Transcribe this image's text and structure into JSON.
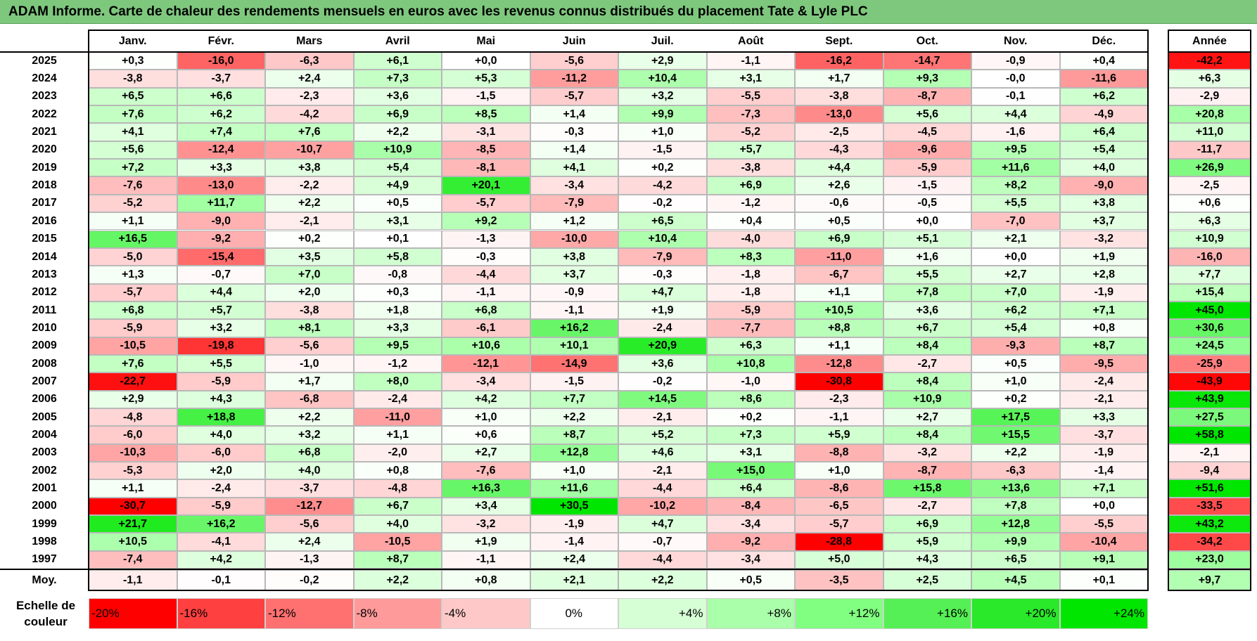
{
  "title": "ADAM Informe. Carte de chaleur des rendements mensuels en euros avec les revenus connus distribués du placement Tate & Lyle PLC",
  "chart_data": {
    "type": "heatmap",
    "title": "ADAM Informe. Carte de chaleur des rendements mensuels en euros avec les revenus connus distribués du placement Tate & Lyle PLC",
    "columns": [
      "Janv.",
      "Févr.",
      "Mars",
      "Avril",
      "Mai",
      "Juin",
      "Juil.",
      "Août",
      "Sept.",
      "Oct.",
      "Nov.",
      "Déc."
    ],
    "year_column": "Année",
    "rows": [
      {
        "year": "2025",
        "values": [
          "+0,3",
          "-16,0",
          "-6,3",
          "+6,1",
          "+0,0",
          "-5,6",
          "+2,9",
          "-1,1",
          "-16,2",
          "-14,7",
          "-0,9",
          "+0,4"
        ],
        "annual": "-42,2"
      },
      {
        "year": "2024",
        "values": [
          "-3,8",
          "-3,7",
          "+2,4",
          "+7,3",
          "+5,3",
          "-11,2",
          "+10,4",
          "+3,1",
          "+1,7",
          "+9,3",
          "-0,0",
          "-11,6"
        ],
        "annual": "+6,3"
      },
      {
        "year": "2023",
        "values": [
          "+6,5",
          "+6,6",
          "-2,3",
          "+3,6",
          "-1,5",
          "-5,7",
          "+3,2",
          "-5,5",
          "-3,8",
          "-8,7",
          "-0,1",
          "+6,2"
        ],
        "annual": "-2,9"
      },
      {
        "year": "2022",
        "values": [
          "+7,6",
          "+6,2",
          "-4,2",
          "+6,9",
          "+8,5",
          "+1,4",
          "+9,9",
          "-7,3",
          "-13,0",
          "+5,6",
          "+4,4",
          "-4,9"
        ],
        "annual": "+20,8"
      },
      {
        "year": "2021",
        "values": [
          "+4,1",
          "+7,4",
          "+7,6",
          "+2,2",
          "-3,1",
          "-0,3",
          "+1,0",
          "-5,2",
          "-2,5",
          "-4,5",
          "-1,6",
          "+6,4"
        ],
        "annual": "+11,0"
      },
      {
        "year": "2020",
        "values": [
          "+5,6",
          "-12,4",
          "-10,7",
          "+10,9",
          "-8,5",
          "+1,4",
          "-1,5",
          "+5,7",
          "-4,3",
          "-9,6",
          "+9,5",
          "+5,4"
        ],
        "annual": "-11,7"
      },
      {
        "year": "2019",
        "values": [
          "+7,2",
          "+3,3",
          "+3,8",
          "+5,4",
          "-8,1",
          "+4,1",
          "+0,2",
          "-3,8",
          "+4,4",
          "-5,9",
          "+11,6",
          "+4,0"
        ],
        "annual": "+26,9"
      },
      {
        "year": "2018",
        "values": [
          "-7,6",
          "-13,0",
          "-2,2",
          "+4,9",
          "+20,1",
          "-3,4",
          "-4,2",
          "+6,9",
          "+2,6",
          "-1,5",
          "+8,2",
          "-9,0"
        ],
        "annual": "-2,5"
      },
      {
        "year": "2017",
        "values": [
          "-5,2",
          "+11,7",
          "+2,2",
          "+0,5",
          "-5,7",
          "-7,9",
          "-0,2",
          "-1,2",
          "-0,6",
          "-0,5",
          "+5,5",
          "+3,8"
        ],
        "annual": "+0,6"
      },
      {
        "year": "2016",
        "values": [
          "+1,1",
          "-9,0",
          "-2,1",
          "+3,1",
          "+9,2",
          "+1,2",
          "+6,5",
          "+0,4",
          "+0,5",
          "+0,0",
          "-7,0",
          "+3,7"
        ],
        "annual": "+6,3"
      },
      {
        "year": "2015",
        "values": [
          "+16,5",
          "-9,2",
          "+0,2",
          "+0,1",
          "-1,3",
          "-10,0",
          "+10,4",
          "-4,0",
          "+6,9",
          "+5,1",
          "+2,1",
          "-3,2"
        ],
        "annual": "+10,9"
      },
      {
        "year": "2014",
        "values": [
          "-5,0",
          "-15,4",
          "+3,5",
          "+5,8",
          "-0,3",
          "+3,8",
          "-7,9",
          "+8,3",
          "-11,0",
          "+1,6",
          "+0,0",
          "+1,9"
        ],
        "annual": "-16,0"
      },
      {
        "year": "2013",
        "values": [
          "+1,3",
          "-0,7",
          "+7,0",
          "-0,8",
          "-4,4",
          "+3,7",
          "-0,3",
          "-1,8",
          "-6,7",
          "+5,5",
          "+2,7",
          "+2,8"
        ],
        "annual": "+7,7"
      },
      {
        "year": "2012",
        "values": [
          "-5,7",
          "+4,4",
          "+2,0",
          "+0,3",
          "-1,1",
          "-0,9",
          "+4,7",
          "-1,8",
          "+1,1",
          "+7,8",
          "+7,0",
          "-1,9"
        ],
        "annual": "+15,4"
      },
      {
        "year": "2011",
        "values": [
          "+6,8",
          "+5,7",
          "-3,8",
          "+1,8",
          "+6,8",
          "-1,1",
          "+1,9",
          "-5,9",
          "+10,5",
          "+3,6",
          "+6,2",
          "+7,1"
        ],
        "annual": "+45,0"
      },
      {
        "year": "2010",
        "values": [
          "-5,9",
          "+3,2",
          "+8,1",
          "+3,3",
          "-6,1",
          "+16,2",
          "-2,4",
          "-7,7",
          "+8,8",
          "+6,7",
          "+5,4",
          "+0,8"
        ],
        "annual": "+30,6"
      },
      {
        "year": "2009",
        "values": [
          "-10,5",
          "-19,8",
          "-5,6",
          "+9,5",
          "+10,6",
          "+10,1",
          "+20,9",
          "+6,3",
          "+1,1",
          "+8,4",
          "-9,3",
          "+8,7"
        ],
        "annual": "+24,5"
      },
      {
        "year": "2008",
        "values": [
          "+7,6",
          "+5,5",
          "-1,0",
          "-1,2",
          "-12,1",
          "-14,9",
          "+3,6",
          "+10,8",
          "-12,8",
          "-2,7",
          "+0,5",
          "-9,5"
        ],
        "annual": "-25,9"
      },
      {
        "year": "2007",
        "values": [
          "-22,7",
          "-5,9",
          "+1,7",
          "+8,0",
          "-3,4",
          "-1,5",
          "-0,2",
          "-1,0",
          "-30,8",
          "+8,4",
          "+1,0",
          "-2,4"
        ],
        "annual": "-43,9"
      },
      {
        "year": "2006",
        "values": [
          "+2,9",
          "+4,3",
          "-6,8",
          "-2,4",
          "+4,2",
          "+7,7",
          "+14,5",
          "+8,6",
          "-2,3",
          "+10,9",
          "+0,2",
          "-2,1"
        ],
        "annual": "+43,9"
      },
      {
        "year": "2005",
        "values": [
          "-4,8",
          "+18,8",
          "+2,2",
          "-11,0",
          "+1,0",
          "+2,2",
          "-2,1",
          "+0,2",
          "-1,1",
          "+2,7",
          "+17,5",
          "+3,3"
        ],
        "annual": "+27,5"
      },
      {
        "year": "2004",
        "values": [
          "-6,0",
          "+4,0",
          "+3,2",
          "+1,1",
          "+0,6",
          "+8,7",
          "+5,2",
          "+7,3",
          "+5,9",
          "+8,4",
          "+15,5",
          "-3,7"
        ],
        "annual": "+58,8"
      },
      {
        "year": "2003",
        "values": [
          "-10,3",
          "-6,0",
          "+6,8",
          "-2,0",
          "+2,7",
          "+12,8",
          "+4,6",
          "+3,1",
          "-8,8",
          "-3,2",
          "+2,2",
          "-1,9"
        ],
        "annual": "-2,1"
      },
      {
        "year": "2002",
        "values": [
          "-5,3",
          "+2,0",
          "+4,0",
          "+0,8",
          "-7,6",
          "+1,0",
          "-2,1",
          "+15,0",
          "+1,0",
          "-8,7",
          "-6,3",
          "-1,4"
        ],
        "annual": "-9,4"
      },
      {
        "year": "2001",
        "values": [
          "+1,1",
          "-2,4",
          "-3,7",
          "-4,8",
          "+16,3",
          "+11,6",
          "-4,4",
          "+6,4",
          "-8,6",
          "+15,8",
          "+13,6",
          "+7,1"
        ],
        "annual": "+51,6"
      },
      {
        "year": "2000",
        "values": [
          "-30,7",
          "-5,9",
          "-12,7",
          "+6,7",
          "+3,4",
          "+30,5",
          "-10,2",
          "-8,4",
          "-6,5",
          "-2,7",
          "+7,8",
          "+0,0"
        ],
        "annual": "-33,5"
      },
      {
        "year": "1999",
        "values": [
          "+21,7",
          "+16,2",
          "-5,6",
          "+4,0",
          "-3,2",
          "-1,9",
          "+4,7",
          "-3,4",
          "-5,7",
          "+6,9",
          "+12,8",
          "-5,5"
        ],
        "annual": "+43,2"
      },
      {
        "year": "1998",
        "values": [
          "+10,5",
          "-4,1",
          "+2,4",
          "-10,5",
          "+1,9",
          "-1,4",
          "-0,7",
          "-9,2",
          "-28,8",
          "+5,9",
          "+9,9",
          "-10,4"
        ],
        "annual": "-34,2"
      },
      {
        "year": "1997",
        "values": [
          "-7,4",
          "+4,2",
          "-1,3",
          "+8,7",
          "-1,1",
          "+2,4",
          "-4,4",
          "-3,4",
          "+5,0",
          "+4,3",
          "+6,5",
          "+9,1"
        ],
        "annual": "+23,0"
      }
    ],
    "average": {
      "label": "Moy.",
      "values": [
        "-1,1",
        "-0,1",
        "-0,2",
        "+2,2",
        "+0,8",
        "+2,1",
        "+2,2",
        "+0,5",
        "-3,5",
        "+2,5",
        "+4,5",
        "+0,1"
      ],
      "annual": "+9,7"
    },
    "legend": {
      "label_line1": "Echelle de",
      "label_line2": "couleur",
      "stops": [
        "-20%",
        "-16%",
        "-12%",
        "-8%",
        "-4%",
        "0%",
        "+4%",
        "+8%",
        "+12%",
        "+16%",
        "+20%",
        "+24%"
      ]
    }
  },
  "colors": {
    "title_bar": "#7ec87e",
    "strong_red": "#ff0000",
    "strong_green": "#00e600",
    "neutral": "#ffffff"
  }
}
